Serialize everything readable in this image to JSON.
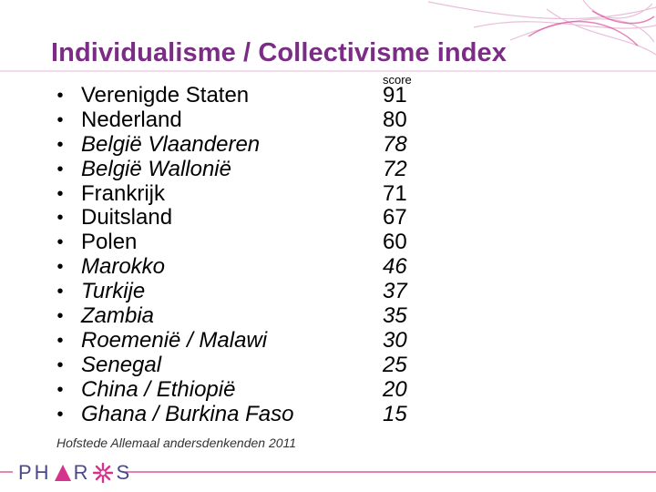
{
  "slide": {
    "title": "Individualisme / Collectivisme index",
    "score_header": "score",
    "source": "Hofstede Allemaal andersdenkenden 2011"
  },
  "logo": {
    "text_left": "PH",
    "text_right": "S",
    "name": "PHAROS"
  },
  "rows": [
    {
      "country": "Verenigde Staten",
      "score": "91",
      "italic": false
    },
    {
      "country": "Nederland",
      "score": "80",
      "italic": false
    },
    {
      "country": "België Vlaanderen",
      "score": "78",
      "italic": true
    },
    {
      "country": "België Wallonië",
      "score": "72",
      "italic": true
    },
    {
      "country": "Frankrijk",
      "score": "71",
      "italic": false
    },
    {
      "country": "Duitsland",
      "score": "67",
      "italic": false
    },
    {
      "country": "Polen",
      "score": "60",
      "italic": false
    },
    {
      "country": "Marokko",
      "score": "46",
      "italic": true
    },
    {
      "country": "Turkije",
      "score": "37",
      "italic": true
    },
    {
      "country": "Zambia",
      "score": "35",
      "italic": true
    },
    {
      "country": "Roemenië / Malawi",
      "score": "30",
      "italic": true
    },
    {
      "country": "Senegal",
      "score": "25",
      "italic": true
    },
    {
      "country": "China / Ethiopië",
      "score": "20",
      "italic": true
    },
    {
      "country": "Ghana / Burkina Faso",
      "score": "15",
      "italic": true
    }
  ],
  "colors": {
    "title": "#7b2d86",
    "accent_pink": "#d6338c",
    "logo_blue": "#4a4a8a"
  }
}
